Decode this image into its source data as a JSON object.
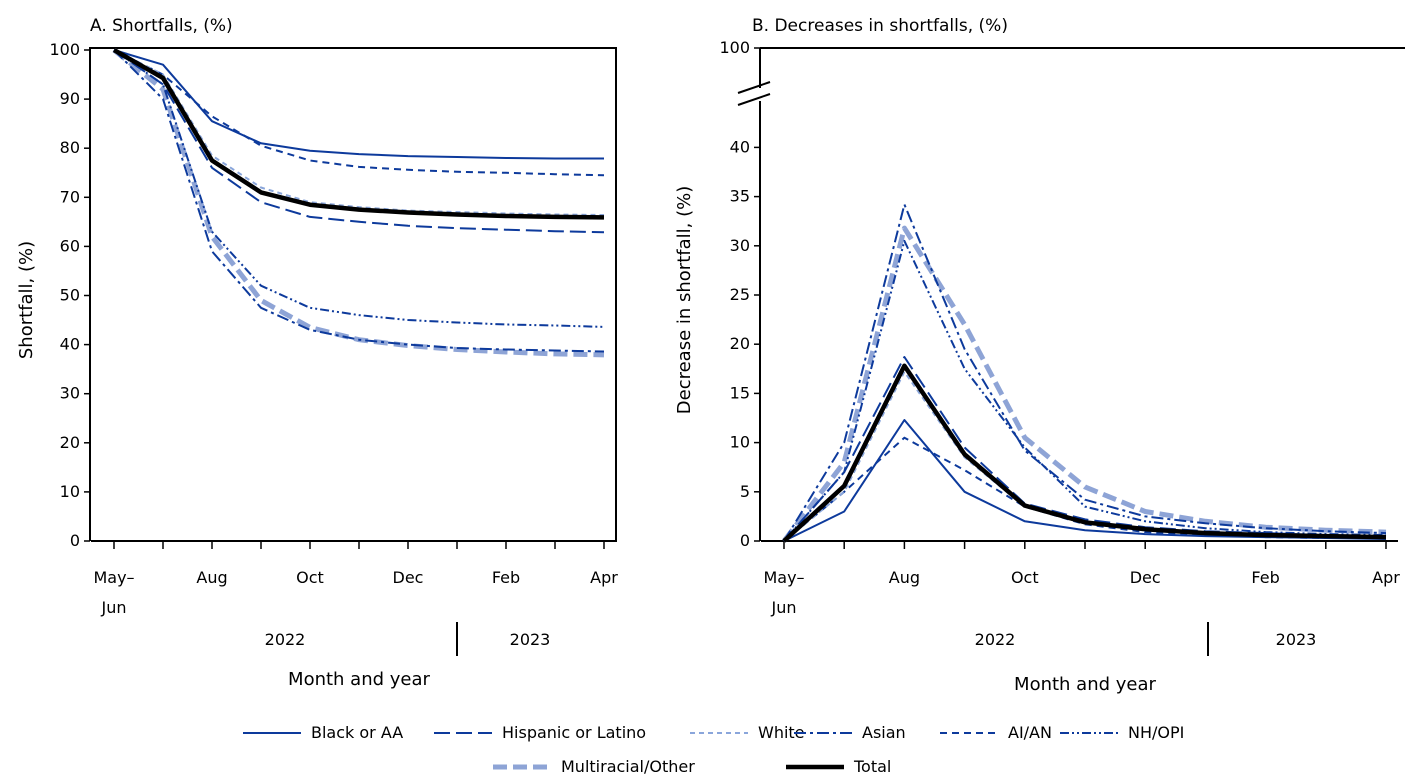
{
  "chart_data": [
    {
      "panel": "A",
      "type": "line",
      "title": "A. Shortfalls, (%)",
      "xlabel": "Month and year",
      "ylabel": "Shortfall, (%)",
      "ylim": [
        0,
        100
      ],
      "y_ticks": [
        "0",
        "10",
        "20",
        "30",
        "40",
        "50",
        "60",
        "70",
        "80",
        "90",
        "100"
      ],
      "x": [
        "May–Jun 2022",
        "Jul 2022",
        "Aug 2022",
        "Sep 2022",
        "Oct 2022",
        "Nov 2022",
        "Dec 2022",
        "Jan 2023",
        "Feb 2023",
        "Mar 2023",
        "Apr 2023"
      ],
      "x_tick_labels": [
        {
          "line1": "May–",
          "line2": "Jun"
        },
        {
          "line1": "Aug",
          "line2": ""
        },
        {
          "line1": "Oct",
          "line2": ""
        },
        {
          "line1": "Dec",
          "line2": ""
        },
        {
          "line1": "Feb",
          "line2": ""
        },
        {
          "line1": "Apr",
          "line2": ""
        }
      ],
      "year_labels": [
        "2022",
        "2023"
      ],
      "series": [
        {
          "name": "Black or AA",
          "values": [
            100,
            97,
            85.5,
            81,
            79.5,
            78.8,
            78.4,
            78.2,
            78,
            77.9,
            77.9
          ]
        },
        {
          "name": "Hispanic or Latino",
          "values": [
            100,
            93,
            76,
            69,
            66,
            65,
            64.2,
            63.7,
            63.4,
            63.1,
            62.9
          ]
        },
        {
          "name": "White",
          "values": [
            100,
            95,
            78.5,
            72,
            69,
            68,
            67.3,
            67,
            66.7,
            66.5,
            66.4
          ]
        },
        {
          "name": "Asian",
          "values": [
            100,
            90,
            59,
            47.5,
            43,
            41,
            40,
            39.3,
            39,
            38.8,
            38.6
          ]
        },
        {
          "name": "AI/AN",
          "values": [
            100,
            95,
            86.5,
            80.5,
            77.5,
            76.2,
            75.6,
            75.2,
            75,
            74.7,
            74.5
          ]
        },
        {
          "name": "NH/OPI",
          "values": [
            100,
            93,
            63,
            52,
            47.5,
            46,
            45,
            44.5,
            44.1,
            43.9,
            43.6
          ]
        },
        {
          "name": "Multiracial/Other",
          "values": [
            100,
            92,
            62,
            49,
            43.5,
            41,
            39.8,
            39,
            38.5,
            38.1,
            37.9
          ]
        },
        {
          "name": "Total",
          "values": [
            100,
            94.3,
            77.5,
            71,
            68.5,
            67.5,
            66.9,
            66.5,
            66.2,
            66,
            65.9
          ]
        }
      ]
    },
    {
      "panel": "B",
      "type": "line",
      "title": "B. Decreases in shortfalls, (%)",
      "xlabel": "Month and year",
      "ylabel": "Decrease in shortfall, (%)",
      "ylim": [
        0,
        40
      ],
      "axis_break": true,
      "y_ticks": [
        "0",
        "5",
        "10",
        "15",
        "20",
        "25",
        "30",
        "35",
        "40"
      ],
      "y_tick_above_break": "100",
      "x": [
        "May–Jun 2022",
        "Jul 2022",
        "Aug 2022",
        "Sep 2022",
        "Oct 2022",
        "Nov 2022",
        "Dec 2022",
        "Jan 2023",
        "Feb 2023",
        "Mar 2023",
        "Apr 2023"
      ],
      "x_tick_labels": [
        {
          "line1": "May–",
          "line2": "Jun"
        },
        {
          "line1": "Aug",
          "line2": ""
        },
        {
          "line1": "Oct",
          "line2": ""
        },
        {
          "line1": "Dec",
          "line2": ""
        },
        {
          "line1": "Feb",
          "line2": ""
        },
        {
          "line1": "Apr",
          "line2": ""
        }
      ],
      "year_labels": [
        "2022",
        "2023"
      ],
      "series": [
        {
          "name": "Black or AA",
          "values": [
            0,
            3,
            12.3,
            5,
            2,
            1.1,
            0.7,
            0.5,
            0.4,
            0.3,
            0.2
          ]
        },
        {
          "name": "Hispanic or Latino",
          "values": [
            0,
            7,
            18.7,
            9.5,
            3.8,
            2.2,
            1.4,
            1.0,
            0.8,
            0.6,
            0.5
          ]
        },
        {
          "name": "White",
          "values": [
            0,
            5,
            17.2,
            8.5,
            3.5,
            1.8,
            1.1,
            0.8,
            0.6,
            0.5,
            0.4
          ]
        },
        {
          "name": "Asian",
          "values": [
            0,
            10,
            34.2,
            19.5,
            9.2,
            4.2,
            2.5,
            1.8,
            1.3,
            1.0,
            0.8
          ]
        },
        {
          "name": "AI/AN",
          "values": [
            0,
            5,
            10.5,
            7.2,
            3.5,
            1.7,
            0.9,
            0.6,
            0.4,
            0.3,
            0.3
          ]
        },
        {
          "name": "NH/OPI",
          "values": [
            0,
            7,
            30.5,
            17.5,
            9.5,
            3.5,
            2.0,
            1.3,
            0.9,
            0.7,
            0.6
          ]
        },
        {
          "name": "Multiracial/Other",
          "values": [
            0,
            8,
            31.8,
            22,
            10.5,
            5.5,
            3.0,
            2.0,
            1.4,
            1.1,
            0.9
          ]
        },
        {
          "name": "Total",
          "values": [
            0,
            5.6,
            17.8,
            8.8,
            3.6,
            1.9,
            1.2,
            0.8,
            0.6,
            0.5,
            0.4
          ]
        }
      ]
    }
  ],
  "legend": {
    "items": [
      {
        "name": "Black or AA",
        "color": "#0d3a9c",
        "style": "solid"
      },
      {
        "name": "Hispanic or Latino",
        "color": "#0d3a9c",
        "style": "long-dash"
      },
      {
        "name": "White",
        "color": "#8aa6db",
        "style": "short-dash"
      },
      {
        "name": "Asian",
        "color": "#0d3a9c",
        "style": "dash-dot"
      },
      {
        "name": "AI/AN",
        "color": "#0d3a9c",
        "style": "dash"
      },
      {
        "name": "NH/OPI",
        "color": "#0d3a9c",
        "style": "dash-dot-dot"
      },
      {
        "name": "Multiracial/Other",
        "color": "#8ea4d6",
        "style": "thick-dash"
      },
      {
        "name": "Total",
        "color": "#000000",
        "style": "thick-solid"
      }
    ]
  }
}
